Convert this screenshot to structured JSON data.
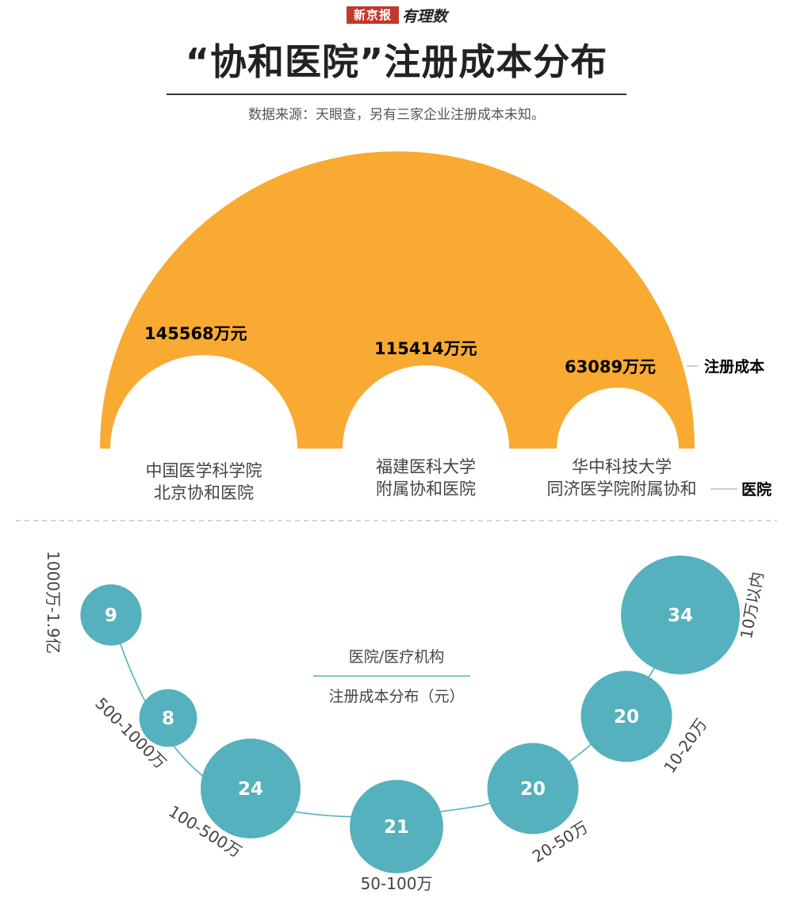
{
  "brand": {
    "newspaper": "新京报",
    "column": "有理数"
  },
  "header": {
    "title": "“协和医院”注册成本分布",
    "source": "数据来源：天眼查，另有三家企业注册成本未知。"
  },
  "legend": {
    "cost": "注册成本",
    "hospital": "医院"
  },
  "center_labels": {
    "line1": "医院/医疗机构",
    "line2": "注册成本分布（元）"
  },
  "colors": {
    "orange": "#F9AA32",
    "teal": "#54B1BD",
    "title": "#222222"
  },
  "chart_data": [
    {
      "type": "bar",
      "categories": [
        {
          "line1": "中国医学科学院",
          "line2": "北京协和医院"
        },
        {
          "line1": "福建医科大学",
          "line2": "附属协和医院"
        },
        {
          "line1": "华中科技大学",
          "line2": "同济医学院附属协和"
        }
      ],
      "values": [
        145568,
        115414,
        63089
      ],
      "value_labels": [
        "145568万元",
        "115414万元",
        "63089万元"
      ]
    },
    {
      "type": "scatter",
      "categories": [
        "1000万-1.9亿",
        "500-1000万",
        "100-500万",
        "50-100万",
        "20-50万",
        "10-20万",
        "10万以内"
      ],
      "values": [
        9,
        8,
        24,
        21,
        20,
        20,
        34
      ]
    }
  ]
}
